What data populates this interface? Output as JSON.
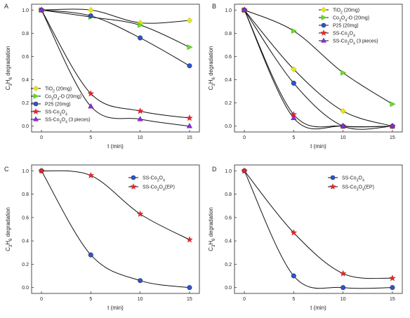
{
  "chart_data": [
    {
      "panel": "A",
      "type": "scatter",
      "xlabel": "t (min)",
      "ylabel": "C₃H₆ degradation",
      "x": [
        0,
        5,
        10,
        15
      ],
      "xticks": [
        "0",
        "5",
        "10",
        "15"
      ],
      "yticks": [
        "0.0",
        "0.2",
        "0.4",
        "0.6",
        "0.8",
        "1.0"
      ],
      "xlim": [
        -1,
        16
      ],
      "ylim": [
        -0.05,
        1.05
      ],
      "legend_position": "bottom-left",
      "series": [
        {
          "name": "TiO₂ (20mg)",
          "values": [
            1.0,
            1.0,
            0.89,
            0.91
          ],
          "color": "#e6e619",
          "marker": "diamond"
        },
        {
          "name": "Co₃O₄-O (20mg)",
          "values": [
            1.0,
            0.94,
            0.87,
            0.68
          ],
          "color": "#66dd22",
          "marker": "triangle-right"
        },
        {
          "name": "P25 (20mg)",
          "values": [
            1.0,
            0.95,
            0.76,
            0.52
          ],
          "color": "#2a55d6",
          "marker": "circle"
        },
        {
          "name": "SS-Co₃O₄",
          "values": [
            1.0,
            0.28,
            0.13,
            0.07
          ],
          "color": "#e8252a",
          "marker": "star"
        },
        {
          "name": "SS-Co₃O₄ (3 pieces)",
          "values": [
            1.0,
            0.17,
            0.06,
            0.0
          ],
          "color": "#8a2be2",
          "marker": "triangle-up"
        }
      ]
    },
    {
      "panel": "B",
      "type": "scatter",
      "xlabel": "t (min)",
      "ylabel": "C₃H₆ degradation",
      "x": [
        0,
        5,
        10,
        15
      ],
      "xticks": [
        "0",
        "5",
        "10",
        "15"
      ],
      "yticks": [
        "0.0",
        "0.2",
        "0.4",
        "0.6",
        "0.8",
        "1.0"
      ],
      "xlim": [
        -1,
        16
      ],
      "ylim": [
        -0.05,
        1.05
      ],
      "legend_position": "top-right",
      "series": [
        {
          "name": "TiO₂ (20mg)",
          "values": [
            1.0,
            0.49,
            0.13,
            0.0
          ],
          "color": "#e6e619",
          "marker": "diamond"
        },
        {
          "name": "Co₃O₄-O (20mg)",
          "values": [
            1.0,
            0.82,
            0.46,
            0.19
          ],
          "color": "#66dd22",
          "marker": "triangle-right"
        },
        {
          "name": "P25 (20mg)",
          "values": [
            1.0,
            0.37,
            0.0,
            0.0
          ],
          "color": "#2a55d6",
          "marker": "circle"
        },
        {
          "name": "SS-Co₃O₄",
          "values": [
            1.0,
            0.1,
            0.0,
            0.0
          ],
          "color": "#e8252a",
          "marker": "star"
        },
        {
          "name": "SS-Co₃O₄ (3 pieces)",
          "values": [
            1.0,
            0.07,
            0.0,
            0.0
          ],
          "color": "#8a2be2",
          "marker": "triangle-up"
        }
      ]
    },
    {
      "panel": "C",
      "type": "scatter",
      "xlabel": "t (min)",
      "ylabel": "C₃H₆ degradation",
      "x": [
        0,
        5,
        10,
        15
      ],
      "xticks": [
        "0",
        "5",
        "10",
        "15"
      ],
      "yticks": [
        "0.0",
        "0.2",
        "0.4",
        "0.6",
        "0.8",
        "1.0"
      ],
      "xlim": [
        -1,
        16
      ],
      "ylim": [
        -0.05,
        1.05
      ],
      "legend_position": "top-right",
      "series": [
        {
          "name": "SS-Co₃O₄",
          "values": [
            1.0,
            0.28,
            0.06,
            0.0
          ],
          "color": "#2a55d6",
          "marker": "circle"
        },
        {
          "name": "SS-Co₃O₄(EP)",
          "values": [
            1.0,
            0.96,
            0.63,
            0.41
          ],
          "color": "#e8252a",
          "marker": "star"
        }
      ]
    },
    {
      "panel": "D",
      "type": "scatter",
      "xlabel": "t (min)",
      "ylabel": "C₃H₆ degradation",
      "x": [
        0,
        5,
        10,
        15
      ],
      "xticks": [
        "0",
        "5",
        "10",
        "15"
      ],
      "yticks": [
        "0.0",
        "0.2",
        "0.4",
        "0.6",
        "0.8",
        "1.0"
      ],
      "xlim": [
        -1,
        16
      ],
      "ylim": [
        -0.05,
        1.05
      ],
      "legend_position": "top-right",
      "series": [
        {
          "name": "SS-Co₃O₄",
          "values": [
            1.0,
            0.1,
            0.0,
            0.0
          ],
          "color": "#2a55d6",
          "marker": "circle"
        },
        {
          "name": "SS-Co₃O₄(EP)",
          "values": [
            1.0,
            0.47,
            0.12,
            0.08
          ],
          "color": "#e8252a",
          "marker": "star"
        }
      ]
    }
  ]
}
